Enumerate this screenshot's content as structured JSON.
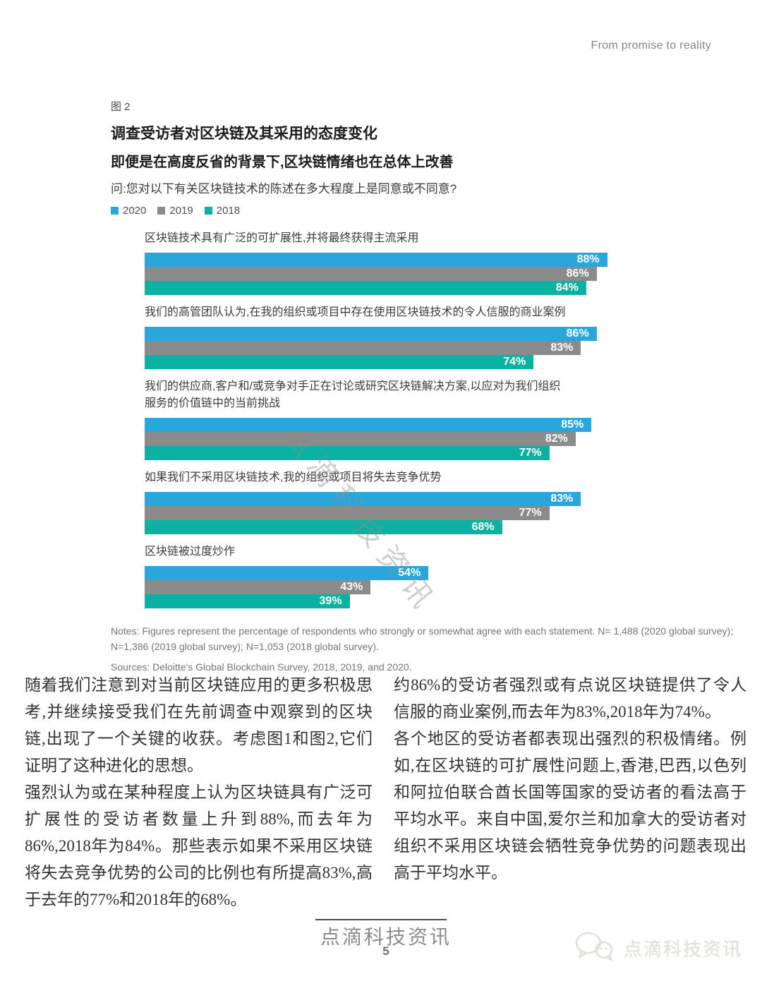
{
  "header": {
    "brand": "From promise to reality"
  },
  "figure": {
    "label": "图 2",
    "title": "调查受访者对区块链及其采用的态度变化",
    "subtitle": "即便是在高度反省的背景下,区块链情绪也在总体上改善",
    "question": "问:您对以下有关区块链技术的陈述在多大程度上是同意或不同意?"
  },
  "chart_data": {
    "type": "bar",
    "orientation": "horizontal",
    "xlim": [
      0,
      100
    ],
    "grid": false,
    "legend_position": "top-left",
    "value_suffix": "%",
    "legend": [
      {
        "label": "2020",
        "color": "#29a7dd"
      },
      {
        "label": "2019",
        "color": "#8b8b8b"
      },
      {
        "label": "2018",
        "color": "#0bb1a2"
      }
    ],
    "categories": [
      "区块链技术具有广泛的可扩展性,并将最终获得主流采用",
      "我们的高管团队认为,在我的组织或项目中存在使用区块链技术的令人信服的商业案例",
      "我们的供应商,客户和/或竞争对手正在讨论或研究区块链解决方案,以应对为我们组织\n服务的价值链中的当前挑战",
      "如果我们不采用区块链技术,我的组织或项目将失去竞争优势",
      "区块链被过度炒作"
    ],
    "series": [
      {
        "name": "2020",
        "values": [
          88,
          86,
          85,
          83,
          54
        ]
      },
      {
        "name": "2019",
        "values": [
          86,
          83,
          82,
          77,
          43
        ]
      },
      {
        "name": "2018",
        "values": [
          84,
          74,
          77,
          68,
          39
        ]
      }
    ]
  },
  "notes": {
    "line1": "Notes: Figures represent the percentage of respondents who strongly or somewhat agree with each statement. N= 1,488 (2020 global survey); N=1,386 (2019 global survey); N=1,053 (2018 global survey).",
    "sources": "Sources: Deloitte's Global Blockchain Survey, 2018, 2019, and 2020."
  },
  "body": {
    "left_p1": "随着我们注意到对当前区块链应用的更多积极思考,并继续接受我们在先前调查中观察到的区块链,出现了一个关键的收获。考虑图1和图2,它们证明了这种进化的思想。",
    "left_p2": "强烈认为或在某种程度上认为区块链具有广泛可扩展性的受访者数量上升到88%,而去年为86%,2018年为84%。那些表示如果不采用区块链将失去竞争优势的公司的比例也有所提高83%,高于去年的77%和2018年的68%。",
    "right_p1": "约86%的受访者强烈或有点说区块链提供了令人信服的商业案例,而去年为83%,2018年为74%。",
    "right_p2": "各个地区的受访者都表现出强烈的积极情绪。例如,在区块链的可扩展性问题上,香港,巴西,以色列和阿拉伯联合酋长国等国家的受访者的看法高于平均水平。来自中国,爱尔兰和加拿大的受访者对组织不采用区块链会牺牲竞争优势的问题表现出高于平均水平。"
  },
  "watermark": {
    "diagonal": "点滴科技资讯"
  },
  "footer": {
    "watermark": "点滴科技资讯",
    "page": "5",
    "logo_text": "点滴科技资讯"
  }
}
